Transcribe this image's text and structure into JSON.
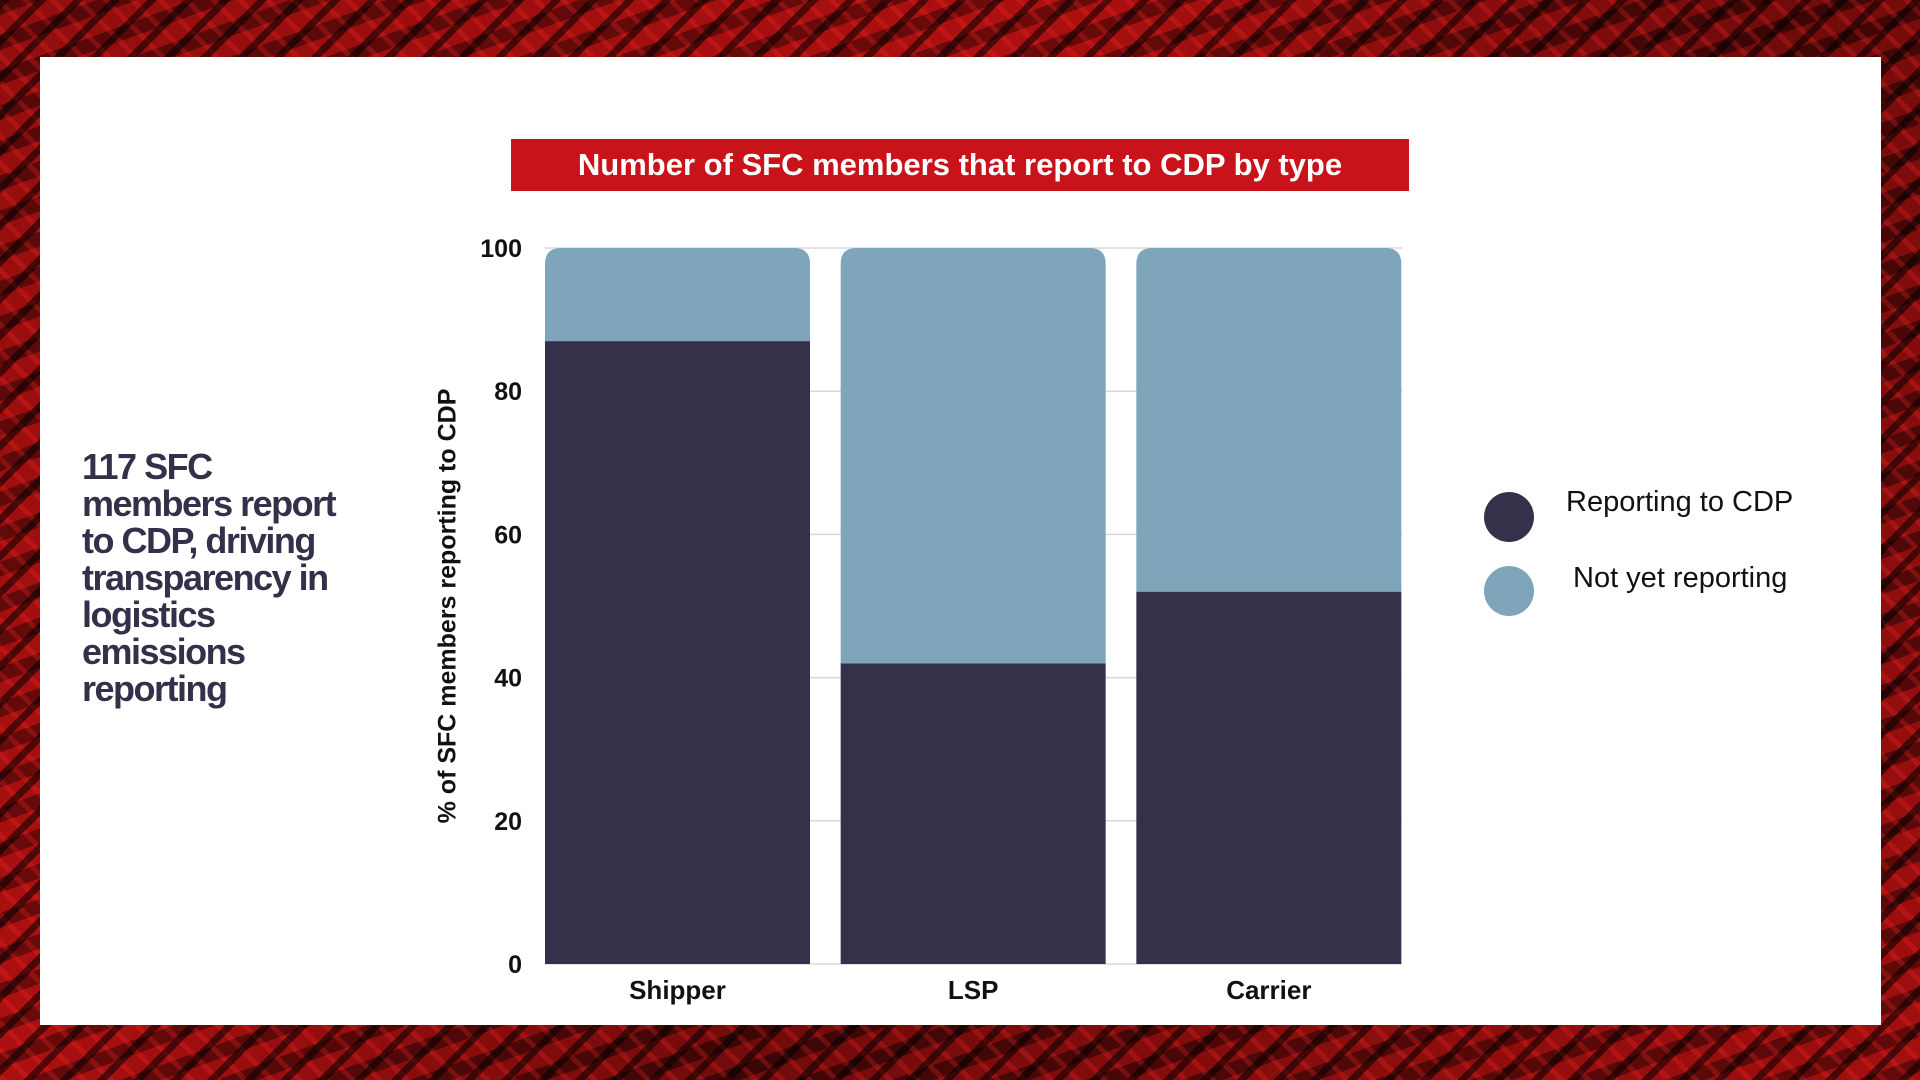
{
  "headline": "117 SFC members report to CDP, driving transparency in logistics emissions reporting",
  "chart_data": {
    "type": "bar",
    "stacked": true,
    "title": "Number of SFC members that report to CDP by type",
    "xlabel": "",
    "ylabel": "% of SFC members reporting to CDP",
    "categories": [
      "Shipper",
      "LSP",
      "Carrier"
    ],
    "ylim": [
      0,
      100
    ],
    "yticks": [
      0,
      20,
      40,
      60,
      80,
      100
    ],
    "grid": true,
    "legend_position": "right",
    "series": [
      {
        "name": "Reporting to CDP",
        "values": [
          87,
          42,
          52
        ],
        "color": "#35314a"
      },
      {
        "name": "Not yet reporting",
        "values": [
          13,
          58,
          48
        ],
        "color": "#7fa5ba"
      }
    ]
  },
  "colors": {
    "title_background": "#c8131b",
    "headline_text": "#34304a"
  }
}
